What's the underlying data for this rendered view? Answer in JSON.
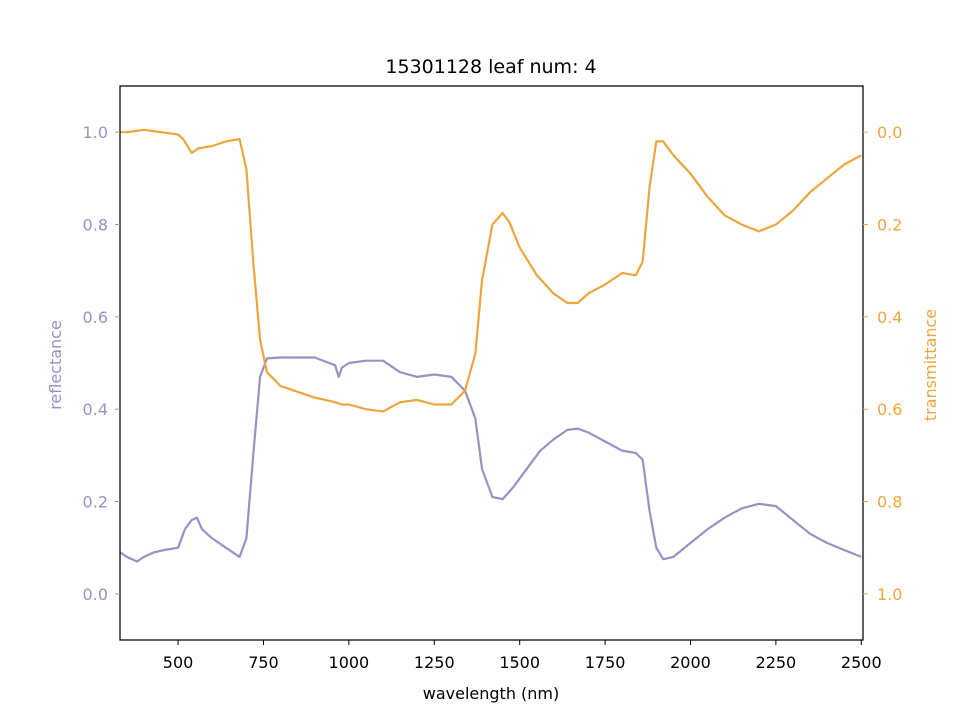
{
  "chart_data": {
    "type": "line",
    "title": "15301128 leaf num: 4",
    "xlabel": "wavelength (nm)",
    "xlim": [
      330,
      2505
    ],
    "xticks": [
      500,
      750,
      1000,
      1250,
      1500,
      1750,
      2000,
      2250,
      2500
    ],
    "grid": false,
    "legend": "none",
    "left_axis": {
      "label": "reflectance",
      "color": "#9891c4",
      "ylim": [
        -0.1,
        1.1
      ],
      "ticks": [
        "0.0",
        "0.2",
        "0.4",
        "0.6",
        "0.8",
        "1.0"
      ]
    },
    "right_axis": {
      "label": "transmittance",
      "color": "#eea53e",
      "ylim": [
        1.1,
        -0.1
      ],
      "inverted": true,
      "ticks": [
        "0.0",
        "0.2",
        "0.4",
        "0.6",
        "0.8",
        "1.0"
      ]
    },
    "series": [
      {
        "axis": "left",
        "color": "#9891c4",
        "x": [
          330,
          350,
          380,
          400,
          430,
          460,
          500,
          520,
          540,
          555,
          570,
          600,
          640,
          680,
          700,
          720,
          740,
          760,
          800,
          900,
          960,
          970,
          980,
          1000,
          1050,
          1100,
          1150,
          1200,
          1250,
          1300,
          1340,
          1370,
          1390,
          1420,
          1450,
          1480,
          1520,
          1560,
          1600,
          1640,
          1670,
          1700,
          1750,
          1800,
          1840,
          1860,
          1880,
          1900,
          1920,
          1950,
          2000,
          2050,
          2100,
          2150,
          2200,
          2250,
          2300,
          2350,
          2400,
          2450,
          2500
        ],
        "values": [
          0.09,
          0.08,
          0.07,
          0.08,
          0.09,
          0.095,
          0.1,
          0.14,
          0.16,
          0.165,
          0.14,
          0.12,
          0.1,
          0.08,
          0.12,
          0.3,
          0.47,
          0.51,
          0.512,
          0.512,
          0.495,
          0.47,
          0.49,
          0.5,
          0.505,
          0.505,
          0.48,
          0.47,
          0.475,
          0.47,
          0.44,
          0.38,
          0.27,
          0.21,
          0.205,
          0.23,
          0.27,
          0.31,
          0.335,
          0.355,
          0.358,
          0.35,
          0.33,
          0.31,
          0.305,
          0.29,
          0.18,
          0.1,
          0.075,
          0.08,
          0.11,
          0.14,
          0.165,
          0.185,
          0.195,
          0.19,
          0.16,
          0.13,
          0.11,
          0.095,
          0.08
        ]
      },
      {
        "axis": "right",
        "color": "#eea53e",
        "x": [
          330,
          350,
          400,
          450,
          500,
          515,
          540,
          560,
          600,
          640,
          680,
          700,
          720,
          740,
          760,
          800,
          900,
          960,
          980,
          1000,
          1050,
          1100,
          1150,
          1200,
          1250,
          1300,
          1340,
          1370,
          1390,
          1420,
          1450,
          1470,
          1500,
          1550,
          1600,
          1640,
          1670,
          1700,
          1750,
          1800,
          1840,
          1860,
          1880,
          1900,
          1920,
          1950,
          2000,
          2050,
          2100,
          2150,
          2200,
          2250,
          2300,
          2350,
          2400,
          2450,
          2500
        ],
        "values": [
          0.0,
          0.0,
          -0.005,
          0.0,
          0.005,
          0.015,
          0.045,
          0.035,
          0.03,
          0.02,
          0.015,
          0.08,
          0.28,
          0.45,
          0.52,
          0.55,
          0.575,
          0.585,
          0.59,
          0.59,
          0.6,
          0.605,
          0.585,
          0.58,
          0.59,
          0.59,
          0.56,
          0.48,
          0.32,
          0.2,
          0.175,
          0.195,
          0.25,
          0.31,
          0.35,
          0.37,
          0.37,
          0.35,
          0.33,
          0.305,
          0.31,
          0.28,
          0.12,
          0.02,
          0.02,
          0.05,
          0.09,
          0.14,
          0.18,
          0.2,
          0.215,
          0.2,
          0.17,
          0.13,
          0.1,
          0.07,
          0.05
        ]
      }
    ]
  }
}
